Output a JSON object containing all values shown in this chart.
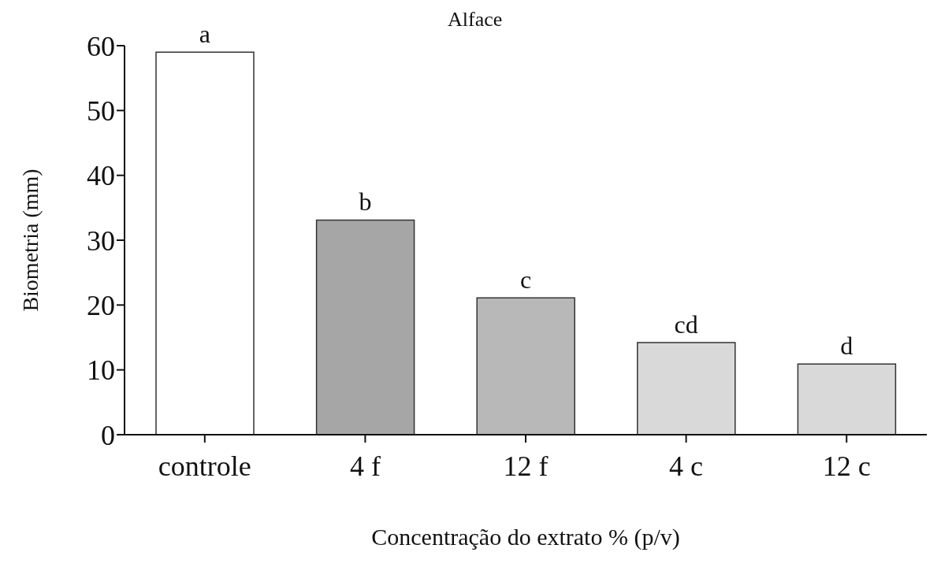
{
  "chart_data": {
    "type": "bar",
    "title": "Alface",
    "xlabel": "Concentração do extrato % (p/v)",
    "ylabel": "Biometria (mm)",
    "categories": [
      "controle",
      "4 f",
      "12 f",
      "4 c",
      "12 c"
    ],
    "values": [
      59,
      33.1,
      21.1,
      14.2,
      10.9
    ],
    "colors": [
      "#ffffff",
      "#a6a6a6",
      "#b8b8b8",
      "#d9d9d9",
      "#d9d9d9"
    ],
    "ylim": [
      0,
      60
    ],
    "yticks": [
      0,
      10,
      20,
      30,
      40,
      50,
      60
    ],
    "grid": false,
    "legend": false,
    "annotations": [
      {
        "text": "a",
        "x": "controle",
        "y": 59
      },
      {
        "text": "b",
        "x": "4 f",
        "y": 33.1
      },
      {
        "text": "c",
        "x": "12 f",
        "y": 21.1
      },
      {
        "text": "cd",
        "x": "4 c",
        "y": 14.2
      },
      {
        "text": "d",
        "x": "12 c",
        "y": 10.9
      }
    ]
  }
}
